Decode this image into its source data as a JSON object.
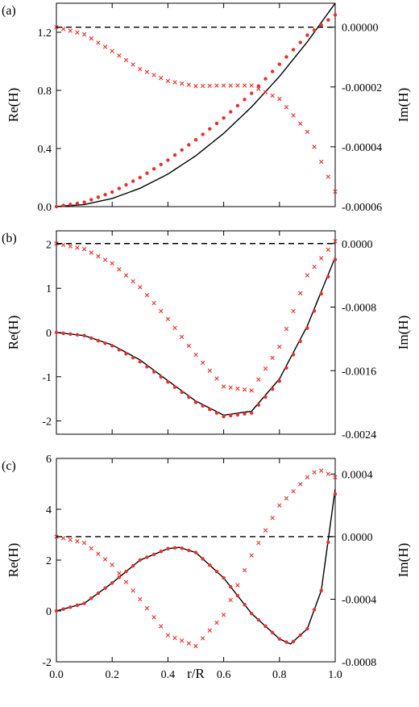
{
  "figure": {
    "xlabel": "r/R",
    "colors": {
      "axis": "#000000",
      "simulation": "#e8302a",
      "theory": "#000000"
    }
  },
  "chart_data": [
    {
      "type": "line",
      "panel_label": "(a)",
      "xlabel": "",
      "ylabel_left": "Re(H)",
      "ylabel_right": "Im(H)",
      "xlim": [
        0,
        1
      ],
      "ylim_left": [
        0,
        1.4
      ],
      "ylim_right": [
        -6e-05,
        8e-06
      ],
      "yticks_left": [
        0.0,
        0.4,
        0.8,
        1.2
      ],
      "yticks_left_labels": [
        "0.0",
        "0.4",
        "0.8",
        "1.2"
      ],
      "yticks_right": [
        0,
        -2e-05,
        -4e-05,
        -6e-05
      ],
      "yticks_right_labels": [
        "0.00000",
        "-0.00002",
        "-0.00004",
        "-0.00006"
      ],
      "xticks": [
        0,
        0.2,
        0.4,
        0.6,
        0.8,
        1.0
      ],
      "xtick_labels": [],
      "series": [
        {
          "style": "solid-line",
          "axis": "left",
          "x": [
            0,
            0.1,
            0.2,
            0.3,
            0.4,
            0.5,
            0.6,
            0.7,
            0.8,
            0.9,
            1.0
          ],
          "y": [
            0,
            0.014,
            0.056,
            0.126,
            0.224,
            0.35,
            0.504,
            0.686,
            0.896,
            1.134,
            1.4
          ]
        },
        {
          "style": "dots",
          "axis": "left",
          "x": [
            0,
            0.1,
            0.2,
            0.3,
            0.4,
            0.5,
            0.6,
            0.7,
            0.8,
            0.9,
            1.0
          ],
          "y": [
            0,
            0.03,
            0.1,
            0.2,
            0.32,
            0.46,
            0.61,
            0.78,
            0.98,
            1.18,
            1.32
          ]
        },
        {
          "style": "crosses",
          "axis": "right",
          "x": [
            0,
            0.1,
            0.2,
            0.3,
            0.4,
            0.5,
            0.6,
            0.7,
            0.8,
            0.9,
            1.0
          ],
          "y": [
            0,
            -2.4e-06,
            -8e-06,
            -1.4e-05,
            -1.8e-05,
            -1.97e-05,
            -1.95e-05,
            -1.95e-05,
            -2.4e-05,
            -3.5e-05,
            -5.5e-05
          ]
        },
        {
          "style": "dashed-line",
          "axis": "right",
          "x": [
            0,
            1
          ],
          "y": [
            0,
            0
          ]
        }
      ]
    },
    {
      "type": "line",
      "panel_label": "(b)",
      "xlabel": "",
      "ylabel_left": "Re(H)",
      "ylabel_right": "Im(H)",
      "xlim": [
        0,
        1
      ],
      "ylim_left": [
        -2.3,
        2.3
      ],
      "ylim_right": [
        -0.0024,
        0.00016
      ],
      "yticks_left": [
        -2,
        -1,
        0,
        1,
        2
      ],
      "yticks_left_labels": [
        "-2",
        "-1",
        "0",
        "1",
        "2"
      ],
      "yticks_right": [
        0,
        -0.0008,
        -0.0016,
        -0.0024
      ],
      "yticks_right_labels": [
        "0.0000",
        "-0.0008",
        "-0.0016",
        "-0.0024"
      ],
      "xticks": [
        0,
        0.2,
        0.4,
        0.6,
        0.8,
        1.0
      ],
      "xtick_labels": [],
      "series": [
        {
          "style": "solid-line",
          "axis": "left",
          "x": [
            0,
            0.1,
            0.2,
            0.3,
            0.4,
            0.5,
            0.6,
            0.7,
            0.8,
            0.9,
            1.0
          ],
          "y": [
            0,
            -0.07,
            -0.28,
            -0.62,
            -1.09,
            -1.55,
            -1.87,
            -1.78,
            -1.05,
            0.15,
            1.7
          ]
        },
        {
          "style": "dots",
          "axis": "left",
          "x": [
            0,
            0.1,
            0.2,
            0.3,
            0.4,
            0.5,
            0.6,
            0.7,
            0.8,
            0.9,
            1.0
          ],
          "y": [
            0,
            -0.07,
            -0.3,
            -0.66,
            -1.12,
            -1.58,
            -1.9,
            -1.82,
            -1.1,
            0.1,
            1.65
          ]
        },
        {
          "style": "crosses",
          "axis": "right",
          "x": [
            0,
            0.1,
            0.2,
            0.3,
            0.4,
            0.5,
            0.6,
            0.7,
            0.8,
            0.9,
            1.0
          ],
          "y": [
            0,
            -7e-05,
            -0.00025,
            -0.00055,
            -0.00095,
            -0.0014,
            -0.0018,
            -0.00185,
            -0.0013,
            -0.0004,
            3e-05
          ]
        },
        {
          "style": "dashed-line",
          "axis": "right",
          "x": [
            0,
            1
          ],
          "y": [
            0,
            0
          ]
        }
      ]
    },
    {
      "type": "line",
      "panel_label": "(c)",
      "xlabel": "r/R",
      "ylabel_left": "Re(H)",
      "ylabel_right": "Im(H)",
      "xlim": [
        0,
        1
      ],
      "ylim_left": [
        -2,
        6
      ],
      "ylim_right": [
        -0.0008,
        0.0005
      ],
      "yticks_left": [
        -2,
        0,
        2,
        4,
        6
      ],
      "yticks_left_labels": [
        "-2",
        "0",
        "2",
        "4",
        "6"
      ],
      "yticks_right": [
        0.0004,
        0,
        -0.0004,
        -0.0008
      ],
      "yticks_right_labels": [
        "0.0004",
        "0.0000",
        "-0.0004",
        "-0.0008"
      ],
      "xticks": [
        0,
        0.2,
        0.4,
        0.6,
        0.8,
        1.0
      ],
      "xtick_labels": [
        "0.0",
        "0.2",
        "0.4",
        "0.6",
        "0.8",
        "1.0"
      ],
      "series": [
        {
          "style": "solid-line",
          "axis": "left",
          "x": [
            0,
            0.1,
            0.2,
            0.3,
            0.4,
            0.44,
            0.5,
            0.6,
            0.7,
            0.8,
            0.84,
            0.9,
            0.95,
            1.0
          ],
          "y": [
            0,
            0.3,
            1.1,
            2.0,
            2.45,
            2.5,
            2.3,
            1.3,
            -0.1,
            -1.1,
            -1.3,
            -0.7,
            0.8,
            4.8
          ]
        },
        {
          "style": "dots",
          "axis": "left",
          "x": [
            0,
            0.1,
            0.2,
            0.3,
            0.4,
            0.44,
            0.5,
            0.6,
            0.7,
            0.8,
            0.84,
            0.9,
            0.95,
            1.0
          ],
          "y": [
            0,
            0.3,
            1.1,
            2.0,
            2.45,
            2.5,
            2.3,
            1.3,
            -0.1,
            -1.1,
            -1.3,
            -0.7,
            0.8,
            4.6
          ]
        },
        {
          "style": "crosses",
          "axis": "right",
          "x": [
            0,
            0.1,
            0.2,
            0.3,
            0.4,
            0.5,
            0.6,
            0.7,
            0.8,
            0.9,
            0.94,
            1.0
          ],
          "y": [
            0,
            -4e-05,
            -0.00018,
            -0.0004,
            -0.00063,
            -0.0007,
            -0.0005,
            -0.00012,
            0.0002,
            0.00038,
            0.00043,
            0.00038
          ]
        },
        {
          "style": "dashed-line",
          "axis": "right",
          "x": [
            0,
            1
          ],
          "y": [
            0,
            0
          ]
        }
      ]
    }
  ]
}
